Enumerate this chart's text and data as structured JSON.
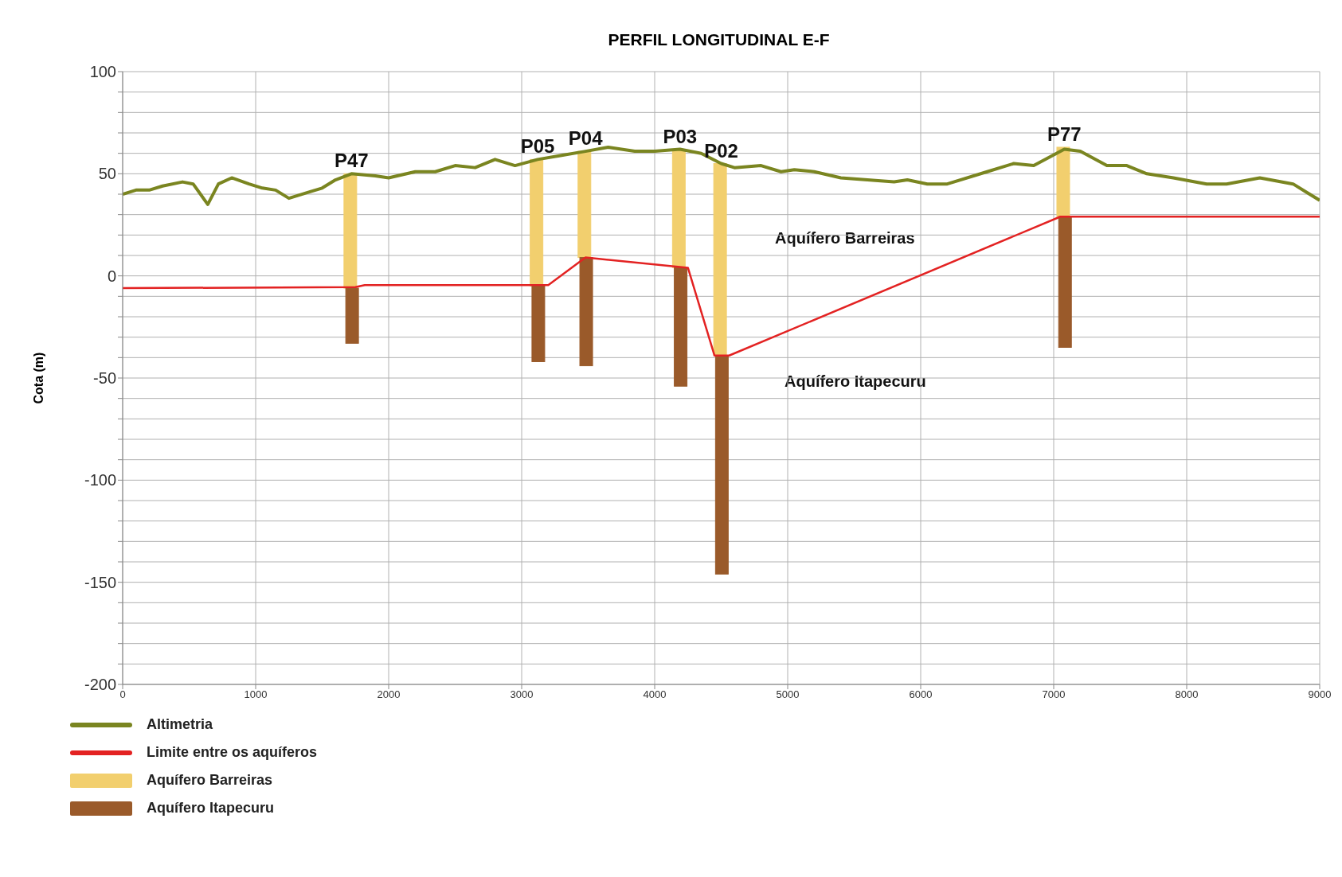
{
  "chart_data": {
    "type": "line",
    "title": "PERFIL LONGITUDINAL E-F",
    "ylabel": "Cota (m)",
    "xlim": [
      0,
      9000
    ],
    "xticks": [
      0,
      1000,
      2000,
      3000,
      4000,
      5000,
      6000,
      7000,
      8000,
      9000
    ],
    "ylim": [
      -200,
      100
    ],
    "yticks": [
      -200,
      {
        "value": -190,
        "label": null
      },
      {
        "value": -180,
        "label": null
      },
      {
        "value": -170,
        "label": null
      },
      {
        "value": -160,
        "label": null
      },
      -150,
      {
        "value": -140,
        "label": null
      },
      {
        "value": -130,
        "label": null
      },
      {
        "value": -120,
        "label": null
      },
      {
        "value": -110,
        "label": null
      },
      -100,
      {
        "value": -90,
        "label": null
      },
      {
        "value": -80,
        "label": null
      },
      {
        "value": -70,
        "label": null
      },
      {
        "value": -60,
        "label": null
      },
      -50,
      {
        "value": -40,
        "label": null
      },
      {
        "value": -30,
        "label": null
      },
      {
        "value": -20,
        "label": null
      },
      {
        "value": -10,
        "label": null
      },
      0,
      {
        "value": 10,
        "label": null
      },
      {
        "value": 20,
        "label": null
      },
      {
        "value": 30,
        "label": null
      },
      {
        "value": 40,
        "label": null
      },
      50,
      {
        "value": 60,
        "label": null
      },
      {
        "value": 70,
        "label": null
      },
      {
        "value": 80,
        "label": null
      },
      {
        "value": 90,
        "label": null
      },
      100
    ],
    "grid": true,
    "legend": "bottom left",
    "series": [
      {
        "name": "Altimetria",
        "color": "#7a8520",
        "x": [
          0,
          100,
          200,
          300,
          450,
          530,
          640,
          720,
          820,
          950,
          1050,
          1150,
          1250,
          1400,
          1500,
          1600,
          1720,
          1900,
          2000,
          2200,
          2350,
          2500,
          2650,
          2800,
          2950,
          3120,
          3300,
          3480,
          3650,
          3850,
          4000,
          4190,
          4350,
          4500,
          4600,
          4800,
          4950,
          5050,
          5200,
          5400,
          5600,
          5800,
          5900,
          6050,
          6200,
          6500,
          6700,
          6850,
          7080,
          7200,
          7400,
          7550,
          7700,
          7900,
          8150,
          8300,
          8550,
          8800,
          8900,
          9000
        ],
        "values": [
          40,
          42,
          42,
          44,
          46,
          45,
          35,
          45,
          48,
          45,
          43,
          42,
          38,
          41,
          43,
          47,
          50,
          49,
          48,
          51,
          51,
          54,
          53,
          57,
          54,
          57,
          59,
          61,
          63,
          61,
          61,
          62,
          60,
          55,
          53,
          54,
          51,
          52,
          51,
          48,
          47,
          46,
          47,
          45,
          45,
          51,
          55,
          54,
          62,
          61,
          54,
          54,
          50,
          48,
          45,
          45,
          48,
          45,
          41,
          37
        ]
      },
      {
        "name": "Limite entre os aquíferos",
        "color": "#e32222",
        "x": [
          0,
          1750,
          1820,
          3200,
          3480,
          4250,
          4450,
          4560,
          7050,
          9000
        ],
        "values": [
          -6,
          -5.5,
          -4.5,
          -4.5,
          9,
          4,
          -39,
          -39,
          29,
          29
        ]
      },
      {
        "name": "Aquífero Barreiras",
        "type": "bar",
        "color": "#f2cf6e",
        "x": [
          1720,
          3120,
          3480,
          4190,
          4500,
          7080
        ],
        "base": [
          -6,
          -5,
          9,
          4,
          -39,
          29
        ],
        "values": [
          56,
          62,
          52,
          58,
          94,
          34
        ]
      },
      {
        "name": "Aquífero Itapecuru",
        "type": "bar",
        "color": "#9a5a2a",
        "x": [
          1720,
          3120,
          3480,
          4190,
          4500,
          7080
        ],
        "base": [
          -33,
          -42,
          -44,
          -54,
          -146,
          -35
        ],
        "values": [
          27,
          37,
          53,
          58,
          107,
          64
        ]
      }
    ],
    "annotations": [
      {
        "text": "P47",
        "x": 1720,
        "y": 50
      },
      {
        "text": "P05",
        "x": 3120,
        "y": 57
      },
      {
        "text": "P04",
        "x": 3480,
        "y": 61
      },
      {
        "text": "P03",
        "x": 4190,
        "y": 62
      },
      {
        "text": "P02",
        "x": 4500,
        "y": 55
      },
      {
        "text": "P77",
        "x": 7080,
        "y": 63
      },
      "Aquífero Barreiras",
      "Aquífero Itapecuru"
    ]
  }
}
